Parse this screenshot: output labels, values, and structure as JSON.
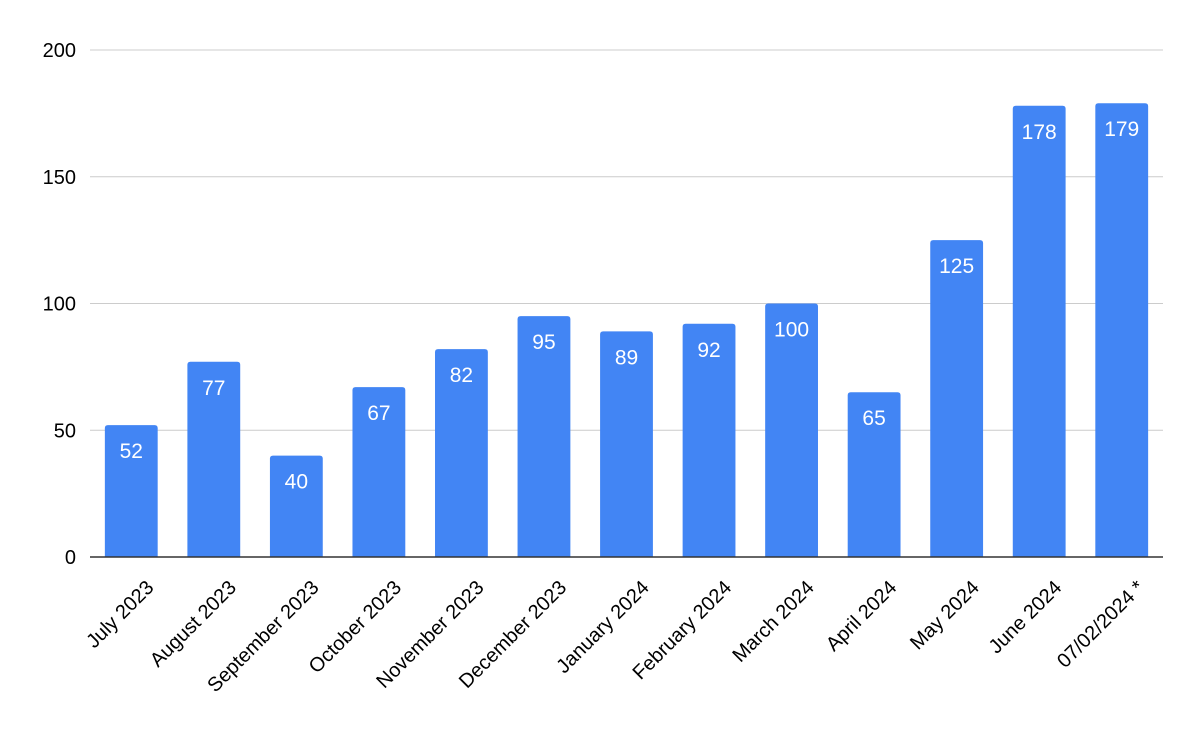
{
  "chart_data": {
    "type": "bar",
    "title": "",
    "xlabel": "",
    "ylabel": "",
    "categories": [
      "July 2023",
      "August 2023",
      "September 2023",
      "October 2023",
      "November 2023",
      "December 2023",
      "January 2024",
      "February 2024",
      "March 2024",
      "April 2024",
      "May 2024",
      "June 2024",
      "07/02/2024 *"
    ],
    "values": [
      52,
      77,
      40,
      67,
      82,
      95,
      89,
      92,
      100,
      65,
      125,
      178,
      179
    ],
    "ylim": [
      0,
      200
    ],
    "yticks": [
      0,
      50,
      100,
      150,
      200
    ],
    "grid": true,
    "data_labels": true,
    "legend": "none",
    "colors": {
      "bar": "#4285f4",
      "grid": "#cccccc",
      "axis": "#333333",
      "label_text": "#ffffff"
    }
  }
}
